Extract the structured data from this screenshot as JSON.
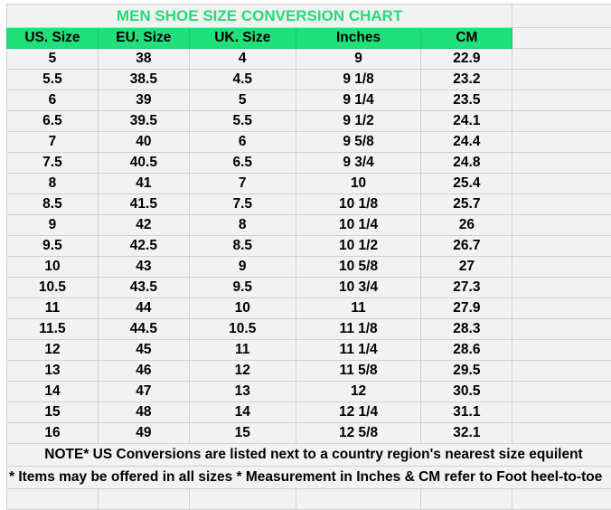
{
  "title": "MEN SHOE SIZE CONVERSION CHART",
  "colors": {
    "accent_green": "#1fe07a",
    "title_green": "#22dc78",
    "background": "#f2f2f2",
    "grid": "#d0d0d0"
  },
  "columns": [
    "US. Size",
    "EU. Size",
    "UK. Size",
    "Inches",
    "CM"
  ],
  "rows": [
    [
      "5",
      "38",
      "4",
      "9",
      "22.9"
    ],
    [
      "5.5",
      "38.5",
      "4.5",
      "9 1/8",
      "23.2"
    ],
    [
      "6",
      "39",
      "5",
      "9 1/4",
      "23.5"
    ],
    [
      "6.5",
      "39.5",
      "5.5",
      "9 1/2",
      "24.1"
    ],
    [
      "7",
      "40",
      "6",
      "9 5/8",
      "24.4"
    ],
    [
      "7.5",
      "40.5",
      "6.5",
      "9 3/4",
      "24.8"
    ],
    [
      "8",
      "41",
      "7",
      "10",
      "25.4"
    ],
    [
      "8.5",
      "41.5",
      "7.5",
      "10 1/8",
      "25.7"
    ],
    [
      "9",
      "42",
      "8",
      "10 1/4",
      "26"
    ],
    [
      "9.5",
      "42.5",
      "8.5",
      "10 1/2",
      "26.7"
    ],
    [
      "10",
      "43",
      "9",
      "10 5/8",
      "27"
    ],
    [
      "10.5",
      "43.5",
      "9.5",
      "10 3/4",
      "27.3"
    ],
    [
      "11",
      "44",
      "10",
      "11",
      "27.9"
    ],
    [
      "11.5",
      "44.5",
      "10.5",
      "11 1/8",
      "28.3"
    ],
    [
      "12",
      "45",
      "11",
      "11 1/4",
      "28.6"
    ],
    [
      "13",
      "46",
      "12",
      "11 5/8",
      "29.5"
    ],
    [
      "14",
      "47",
      "13",
      "12",
      "30.5"
    ],
    [
      "15",
      "48",
      "14",
      "12 1/4",
      "31.1"
    ],
    [
      "16",
      "49",
      "15",
      "12 5/8",
      "32.1"
    ]
  ],
  "notes": [
    "NOTE* US Conversions are listed next to a country region's nearest size equilent",
    "* Items may be offered in all sizes * Measurement in Inches & CM refer to Foot heel-to-toe"
  ]
}
